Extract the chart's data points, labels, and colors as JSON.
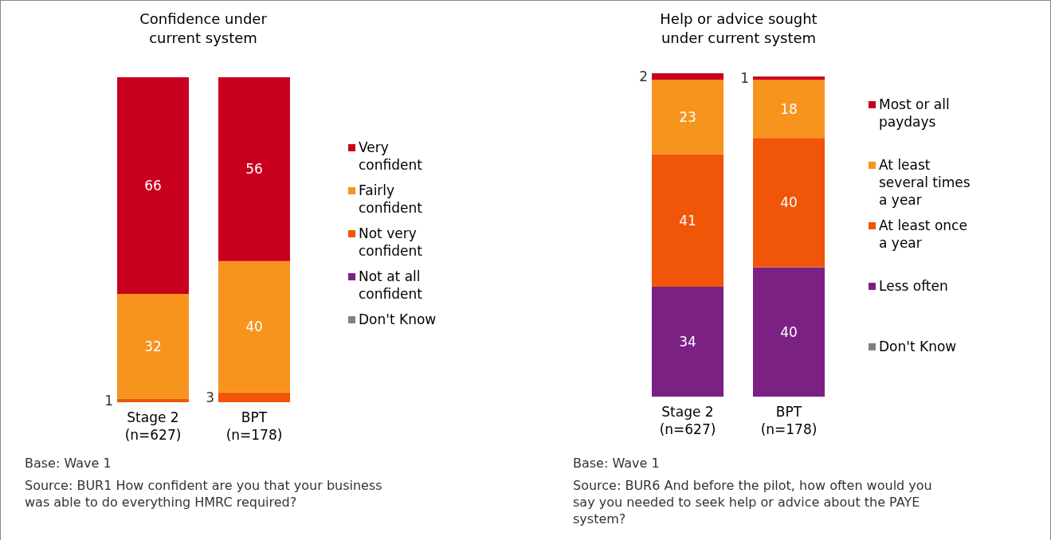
{
  "chart_data": [
    {
      "type": "bar",
      "stacked": true,
      "title": "Confidence under current system",
      "categories": [
        "Stage 2 (n=627)",
        "BPT (n=178)"
      ],
      "legend": "right",
      "series": [
        {
          "name": "Don't Know",
          "color": "#808080",
          "values": [
            0,
            0
          ],
          "value_labels": [
            null,
            null
          ]
        },
        {
          "name": "Not at all confident",
          "color": "#7b2183",
          "values": [
            0,
            0
          ],
          "value_labels": [
            null,
            null
          ]
        },
        {
          "name": "Not very confident",
          "color": "#f05508",
          "values": [
            1,
            3
          ],
          "value_labels": [
            "1",
            "3"
          ]
        },
        {
          "name": "Fairly confident",
          "color": "#f7941e",
          "values": [
            32,
            40
          ],
          "value_labels": [
            "32",
            "40"
          ]
        },
        {
          "name": "Very confident",
          "color": "#c8001e",
          "values": [
            66,
            56
          ],
          "value_labels": [
            "66",
            "56"
          ]
        }
      ],
      "annotations": [
        "Base: Wave 1",
        "Source: BUR1 How confident are you that your business was able to do everything HMRC required?"
      ]
    },
    {
      "type": "bar",
      "stacked": true,
      "title": "Help or advice sought under current system",
      "categories": [
        "Stage 2 (n=627)",
        "BPT (n=178)"
      ],
      "legend": "right",
      "series": [
        {
          "name": "Don't Know",
          "color": "#808080",
          "values": [
            0,
            0
          ],
          "value_labels": [
            null,
            null
          ]
        },
        {
          "name": "Less often",
          "color": "#7b2183",
          "values": [
            34,
            40
          ],
          "value_labels": [
            "34",
            "40"
          ]
        },
        {
          "name": "At least once a year",
          "color": "#f05508",
          "values": [
            41,
            40
          ],
          "value_labels": [
            "41",
            "40"
          ]
        },
        {
          "name": "At least several times a year",
          "color": "#f7941e",
          "values": [
            23,
            18
          ],
          "value_labels": [
            "23",
            "18"
          ]
        },
        {
          "name": "Most or all paydays",
          "color": "#c8001e",
          "values": [
            2,
            1
          ],
          "value_labels": [
            "2",
            "1"
          ]
        }
      ],
      "annotations": [
        "Base: Wave 1",
        "Source: BUR6 And before the pilot, how often would you say you needed to seek help or advice about the PAYE system?"
      ]
    }
  ]
}
